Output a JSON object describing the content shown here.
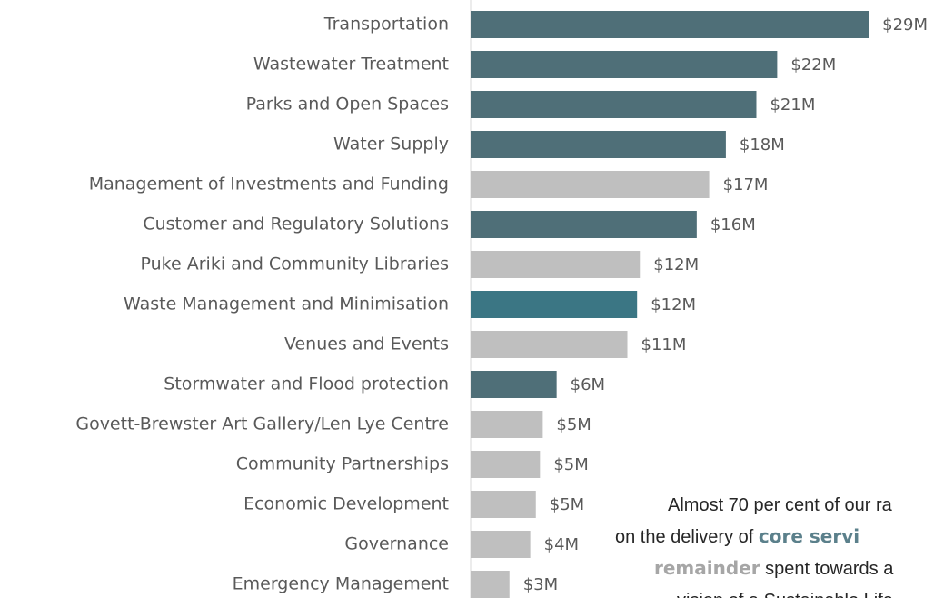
{
  "chart_data": {
    "type": "barh",
    "categories": [
      "Transportation",
      "Wastewater Treatment",
      "Parks and Open Spaces",
      "Water Supply",
      "Management of Investments and Funding",
      "Customer and Regulatory Solutions",
      "Puke Ariki and Community Libraries",
      "Waste Management and Minimisation",
      "Venues and Events",
      "Stormwater and Flood protection",
      "Govett-Brewster Art Gallery/Len Lye Centre",
      "Community Partnerships",
      "Economic Development",
      "Governance",
      "Emergency Management"
    ],
    "values": [
      28.7,
      22.1,
      20.6,
      18.4,
      17.2,
      16.3,
      12.2,
      12.0,
      11.3,
      6.2,
      5.2,
      5.0,
      4.7,
      4.3,
      2.8
    ],
    "value_labels": [
      "$29M",
      "$22M",
      "$21M",
      "$18M",
      "$17M",
      "$16M",
      "$12M",
      "$12M",
      "$11M",
      "$6M",
      "$5M",
      "$5M",
      "$5M",
      "$4M",
      "$3M"
    ],
    "colors": [
      "#4f6f78",
      "#4f6f78",
      "#4f6f78",
      "#4f6f78",
      "#bfbfbf",
      "#4f6f78",
      "#bfbfbf",
      "#3b7684",
      "#bfbfbf",
      "#4f6f78",
      "#bfbfbf",
      "#bfbfbf",
      "#bfbfbf",
      "#bfbfbf",
      "#bfbfbf"
    ],
    "xlim": [
      0,
      30
    ],
    "annotation": [
      [
        {
          "text": "Almost 70 per cent of our ra"
        }
      ],
      [
        {
          "text": "on the delivery of "
        },
        {
          "text": "core servi",
          "bold": true,
          "color": "#5b808b"
        }
      ],
      [
        {
          "text": "remainder",
          "bold": true,
          "color": "#a6a6a6"
        },
        {
          "text": " spent towards a"
        }
      ],
      [
        {
          "text": "vision of a Sustainable Life"
        }
      ]
    ]
  }
}
